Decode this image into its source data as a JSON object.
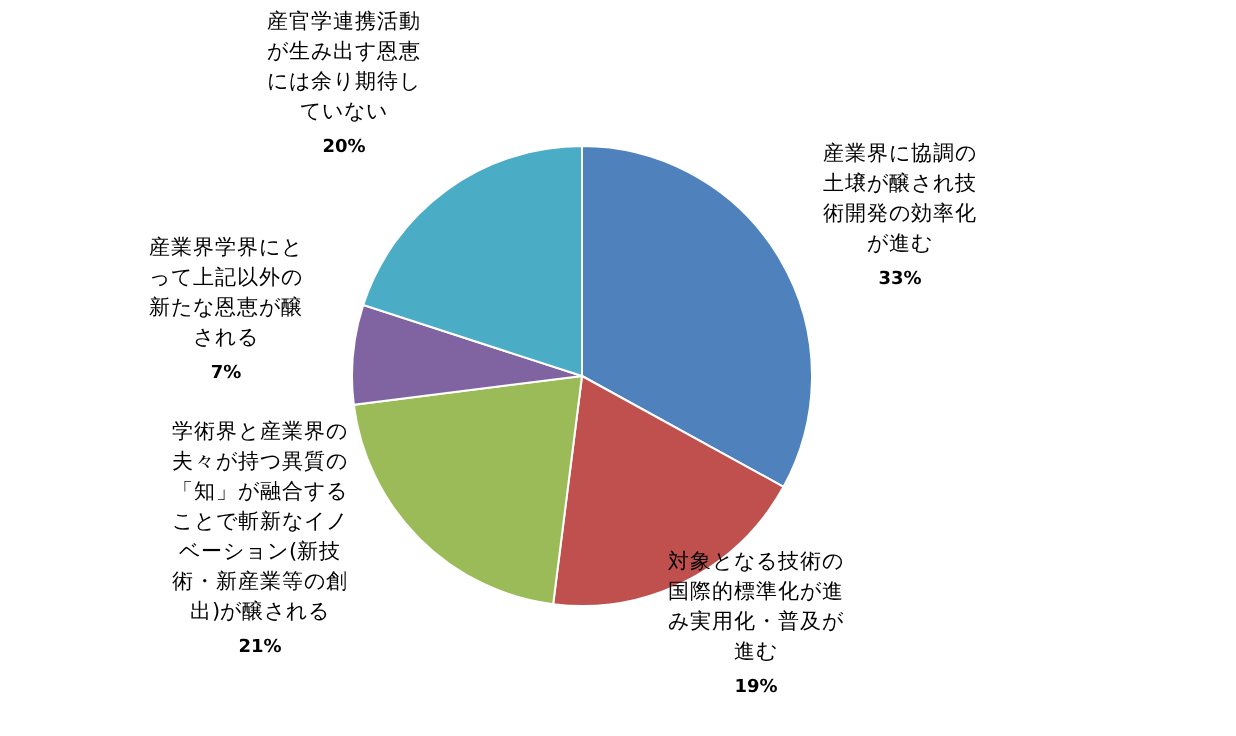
{
  "chart_data": {
    "type": "pie",
    "categories": [
      "産業界に協調の土壌が醸され技術開発の効率化が進む",
      "対象となる技術の国際的標準化が進み実用化・普及が進む",
      "学術界と産業界の夫々が持つ異質の「知」が融合することで斬新なイノベーション(新技術・新産業等の創出)が醸される",
      "産業界学界にとって上記以外の新たな恩恵が醸される",
      "産官学連携活動が生み出す恩恵には余り期待していない"
    ],
    "values": [
      33,
      19,
      21,
      7,
      20
    ],
    "colors": [
      "#4f81bd",
      "#c0504d",
      "#9bbb59",
      "#8064a2",
      "#4bacc6"
    ],
    "value_labels": [
      "33%",
      "19%",
      "21%",
      "7%",
      "20%"
    ]
  }
}
